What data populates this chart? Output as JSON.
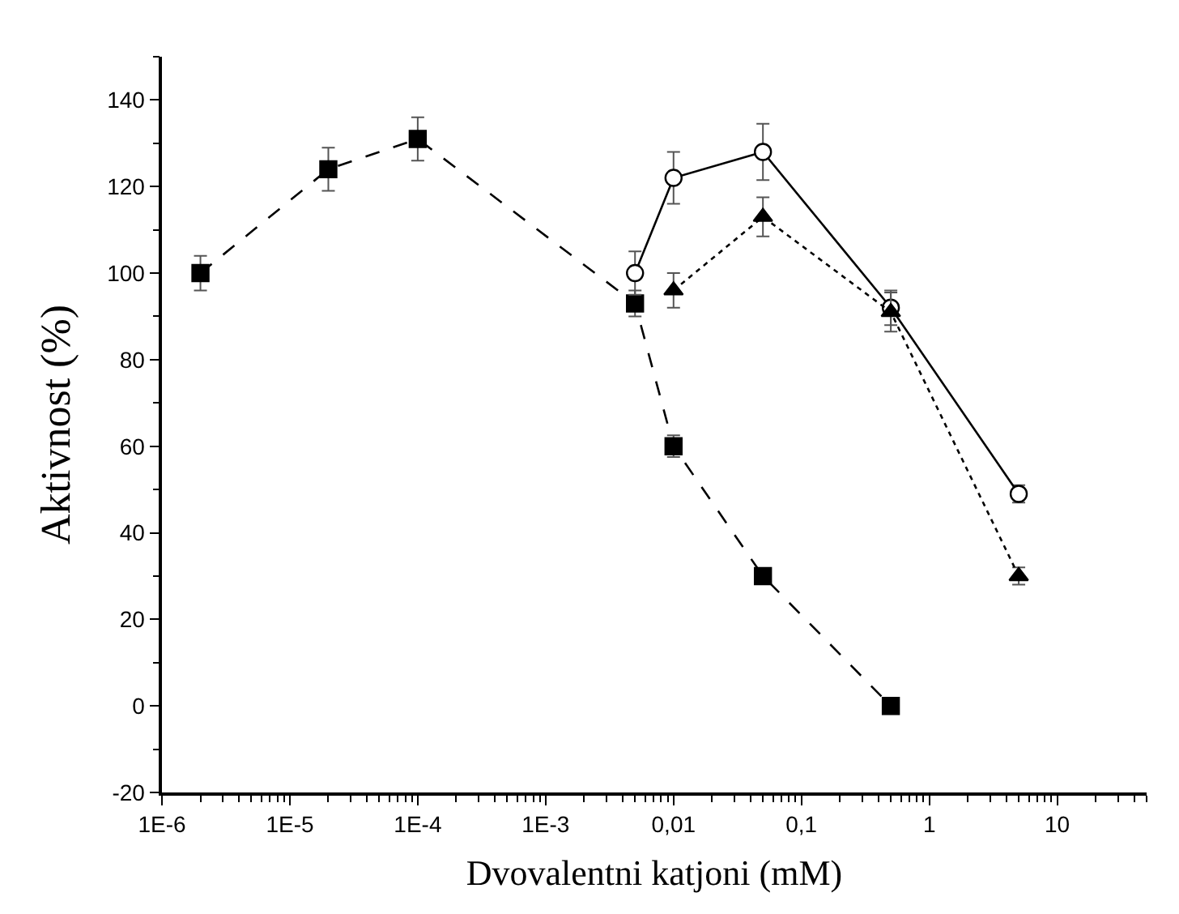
{
  "chart_data": {
    "type": "line",
    "xlabel": "Dvovalentni katjoni (mM)",
    "ylabel": "Aktivnost (%)",
    "log": "x",
    "xlim": [
      1e-06,
      50
    ],
    "ylim": [
      -20,
      150
    ],
    "xticks": [
      {
        "value": 1e-06,
        "label": "1E-6"
      },
      {
        "value": 1e-05,
        "label": "1E-5"
      },
      {
        "value": 0.0001,
        "label": "1E-4"
      },
      {
        "value": 0.001,
        "label": "1E-3"
      },
      {
        "value": 0.01,
        "label": "0,01"
      },
      {
        "value": 0.1,
        "label": "0,1"
      },
      {
        "value": 1,
        "label": "1"
      },
      {
        "value": 10,
        "label": "10"
      }
    ],
    "yticks": [
      -20,
      0,
      20,
      40,
      60,
      80,
      100,
      120,
      140
    ],
    "series": [
      {
        "color": "#000000",
        "marker": "square",
        "line_style": "dashed",
        "x": [
          2e-06,
          2e-05,
          0.0001,
          0.005,
          0.01,
          0.05,
          0.5
        ],
        "values": [
          100,
          124,
          131,
          93,
          60,
          30,
          0
        ],
        "errors": [
          4,
          5,
          5,
          3,
          2.5,
          null,
          null
        ]
      },
      {
        "color": "#000000",
        "marker": "circle-open",
        "line_style": "solid",
        "x": [
          0.005,
          0.01,
          0.05,
          0.5,
          5
        ],
        "values": [
          100,
          122,
          128,
          92,
          49
        ],
        "errors": [
          5,
          6,
          6.5,
          4,
          2
        ]
      },
      {
        "color": "#000000",
        "marker": "triangle",
        "line_style": "dotted",
        "x": [
          0.01,
          0.05,
          0.5,
          5
        ],
        "values": [
          96,
          113,
          91,
          30
        ],
        "errors": [
          4,
          4.5,
          4.5,
          2
        ]
      }
    ]
  }
}
